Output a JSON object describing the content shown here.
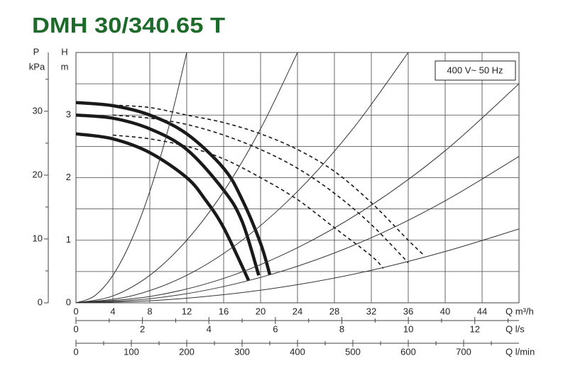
{
  "chart_data": {
    "type": "line",
    "title": "DMH 30/340.65 T",
    "annotation": "400 V~ 50 Hz",
    "x_label": "Q m³/h",
    "y_label": "H",
    "y_unit": "m",
    "y2_label": "P",
    "y2_unit": "kPa",
    "xlim": [
      0,
      48
    ],
    "xticks": [
      0,
      4,
      8,
      12,
      16,
      20,
      24,
      28,
      32,
      36,
      40,
      44
    ],
    "ylim": [
      0,
      4
    ],
    "yticks": [
      0,
      1,
      2,
      3
    ],
    "yminor": [
      0.5,
      1.5,
      2.5,
      3.5
    ],
    "y2lim": [
      0,
      39.2
    ],
    "y2ticks": [
      0,
      10,
      20,
      30
    ],
    "y2minor": [
      5,
      15,
      25,
      35
    ],
    "grid": true,
    "extra_x_axes": [
      {
        "label": "Q l/s",
        "xlim": [
          0,
          13.33
        ],
        "xticks": [
          0,
          2,
          4,
          6,
          8,
          10,
          12
        ],
        "xminor": [
          1,
          3,
          5,
          7,
          9,
          11,
          13
        ]
      },
      {
        "label": "Q l/min",
        "xlim": [
          0,
          800
        ],
        "xticks": [
          0,
          100,
          200,
          300,
          400,
          500,
          600,
          700
        ],
        "xminor": [
          50,
          150,
          250,
          350,
          450,
          550,
          650,
          750
        ]
      }
    ],
    "series": [
      {
        "style": "thick",
        "color": "#1a1a1a",
        "x": [
          0,
          4,
          8,
          12,
          16,
          18,
          20,
          21
        ],
        "values": [
          3.2,
          3.15,
          3.0,
          2.7,
          2.15,
          1.65,
          0.95,
          0.45
        ]
      },
      {
        "style": "thick",
        "color": "#1a1a1a",
        "x": [
          0,
          4,
          8,
          12,
          16,
          18,
          19.8
        ],
        "values": [
          3.0,
          2.95,
          2.78,
          2.45,
          1.8,
          1.3,
          0.44
        ]
      },
      {
        "style": "thick",
        "color": "#1a1a1a",
        "x": [
          0,
          4,
          8,
          12,
          14,
          16,
          18.7
        ],
        "values": [
          2.7,
          2.62,
          2.4,
          2.0,
          1.65,
          1.2,
          0.36
        ]
      },
      {
        "style": "dashed",
        "color": "#1a1a1a",
        "x": [
          4,
          8,
          12,
          16,
          20,
          24,
          28,
          32,
          36,
          37.7
        ],
        "values": [
          3.16,
          3.12,
          3.0,
          2.88,
          2.7,
          2.45,
          2.1,
          1.6,
          1.0,
          0.76
        ]
      },
      {
        "style": "dashed",
        "color": "#1a1a1a",
        "x": [
          4,
          8,
          12,
          16,
          20,
          24,
          28,
          32,
          36
        ],
        "values": [
          3.0,
          2.95,
          2.85,
          2.68,
          2.45,
          2.15,
          1.75,
          1.25,
          0.64
        ]
      },
      {
        "style": "dashed",
        "color": "#1a1a1a",
        "x": [
          4,
          8,
          12,
          16,
          20,
          24,
          28,
          32,
          33.3
        ],
        "values": [
          2.68,
          2.62,
          2.5,
          2.3,
          2.0,
          1.65,
          1.2,
          0.75,
          0.55
        ]
      },
      {
        "style": "thin",
        "color": "#333333",
        "x": [
          0,
          2,
          4,
          6,
          8,
          10,
          12
        ],
        "values": [
          0,
          0.11,
          0.44,
          1.0,
          1.78,
          2.78,
          4.0
        ]
      },
      {
        "style": "thin",
        "color": "#333333",
        "x": [
          0,
          4,
          8,
          12,
          16,
          20,
          24
        ],
        "values": [
          0,
          0.11,
          0.44,
          1.0,
          1.78,
          2.78,
          4.0
        ]
      },
      {
        "style": "thin",
        "color": "#333333",
        "x": [
          0,
          6,
          12,
          18,
          24,
          30,
          36
        ],
        "values": [
          0,
          0.11,
          0.44,
          1.0,
          1.78,
          2.78,
          4.0
        ]
      },
      {
        "style": "thin",
        "color": "#333333",
        "x": [
          0,
          8,
          16,
          24,
          32,
          40,
          48
        ],
        "values": [
          0,
          0.1,
          0.39,
          0.88,
          1.56,
          2.43,
          3.5
        ]
      },
      {
        "style": "thin",
        "color": "#333333",
        "x": [
          0,
          8,
          16,
          24,
          32,
          40,
          48
        ],
        "values": [
          0,
          0.065,
          0.26,
          0.585,
          1.04,
          1.63,
          2.34
        ]
      },
      {
        "style": "thin",
        "color": "#333333",
        "x": [
          0,
          8,
          16,
          24,
          32,
          40,
          48
        ],
        "values": [
          0,
          0.033,
          0.13,
          0.29,
          0.52,
          0.82,
          1.18
        ]
      }
    ]
  }
}
